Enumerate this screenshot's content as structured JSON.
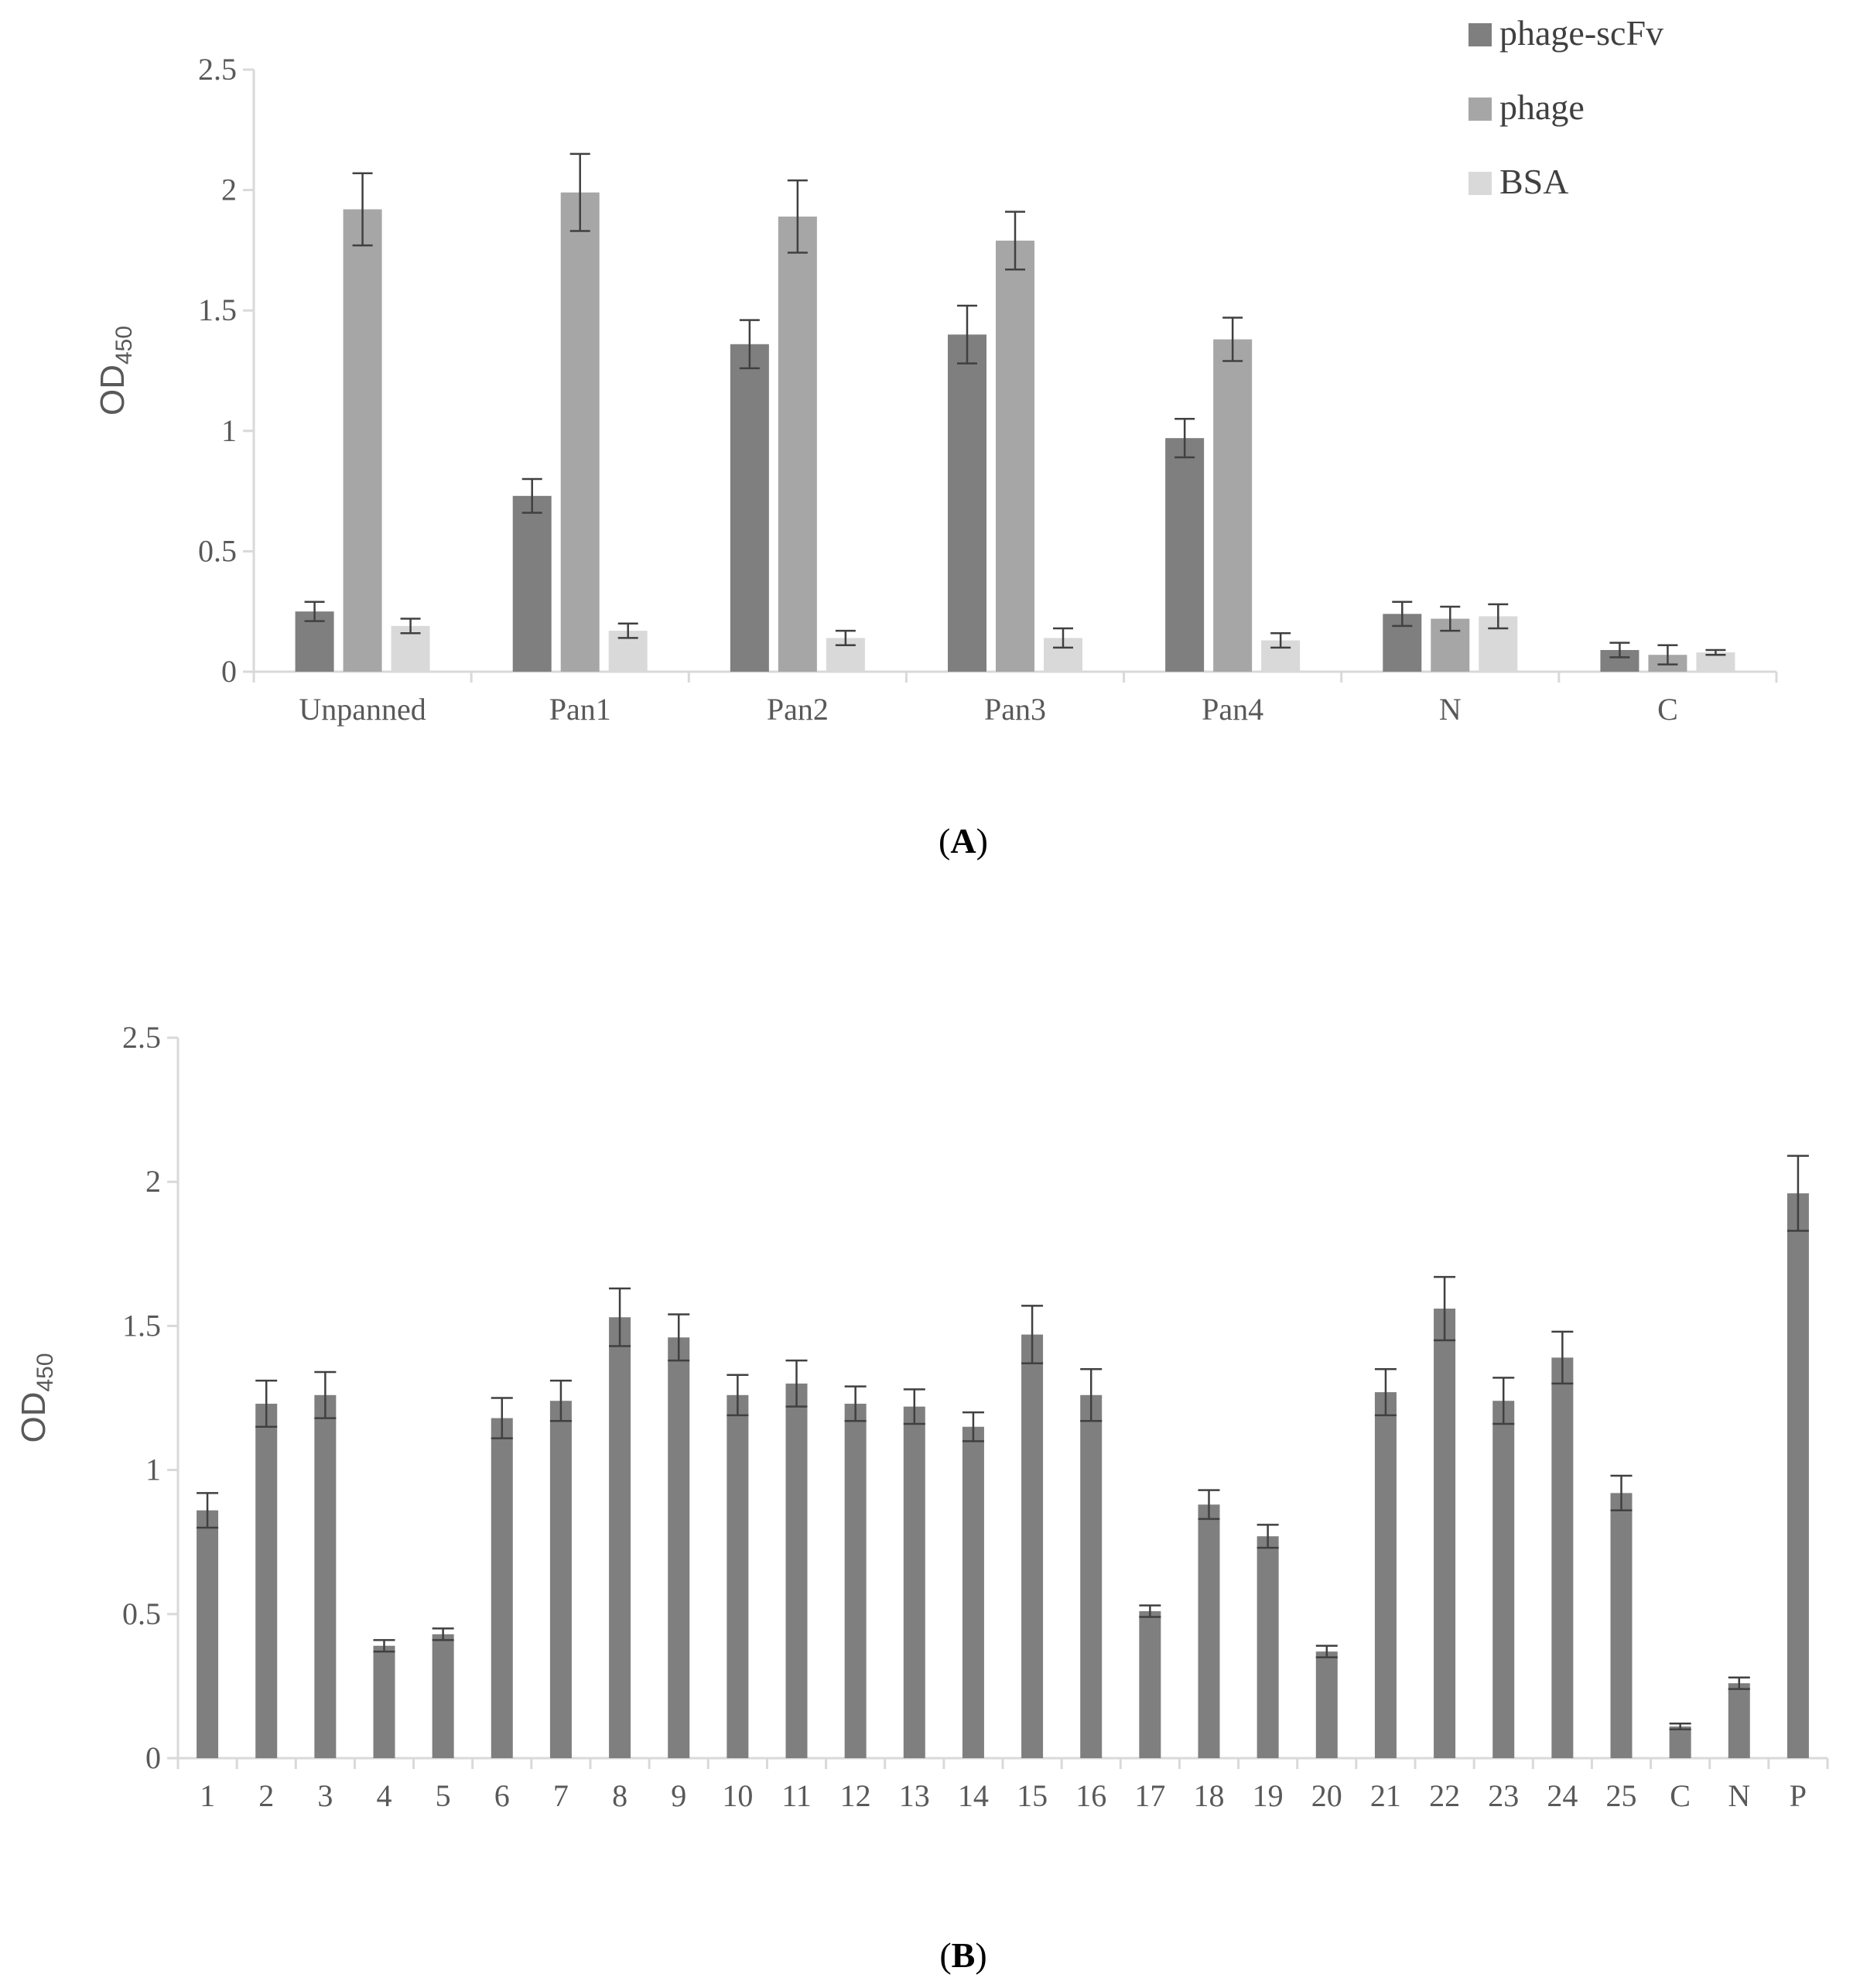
{
  "chart_data": [
    {
      "type": "bar",
      "panel_label": "A",
      "ylabel_main": "OD",
      "ylabel_sub": "450",
      "ylim": [
        0,
        2.5
      ],
      "yticks": [
        "0",
        "0.5",
        "1",
        "1.5",
        "2",
        "2.5"
      ],
      "categories": [
        "Unpanned",
        "Pan1",
        "Pan2",
        "Pan3",
        "Pan4",
        "N",
        "C"
      ],
      "legend_position": "top-right",
      "series": [
        {
          "name": "phage-scFv",
          "color": "#7f7f7f",
          "values": [
            0.25,
            0.73,
            1.36,
            1.4,
            0.97,
            0.24,
            0.09
          ],
          "errors": [
            0.04,
            0.07,
            0.1,
            0.12,
            0.08,
            0.05,
            0.03
          ]
        },
        {
          "name": "phage",
          "color": "#a6a6a6",
          "values": [
            1.92,
            1.99,
            1.89,
            1.79,
            1.38,
            0.22,
            0.07
          ],
          "errors": [
            0.15,
            0.16,
            0.15,
            0.12,
            0.09,
            0.05,
            0.04
          ]
        },
        {
          "name": "BSA",
          "color": "#d9d9d9",
          "values": [
            0.19,
            0.17,
            0.14,
            0.14,
            0.13,
            0.23,
            0.08
          ],
          "errors": [
            0.03,
            0.03,
            0.03,
            0.04,
            0.03,
            0.05,
            0.01
          ]
        }
      ]
    },
    {
      "type": "bar",
      "panel_label": "B",
      "ylabel_main": "OD",
      "ylabel_sub": "450",
      "ylim": [
        0,
        2.5
      ],
      "yticks": [
        "0",
        "0.5",
        "1",
        "1.5",
        "2",
        "2.5"
      ],
      "categories": [
        "1",
        "2",
        "3",
        "4",
        "5",
        "6",
        "7",
        "8",
        "9",
        "10",
        "11",
        "12",
        "13",
        "14",
        "15",
        "16",
        "17",
        "18",
        "19",
        "20",
        "21",
        "22",
        "23",
        "24",
        "25",
        "C",
        "N",
        "P"
      ],
      "series": [
        {
          "color": "#7f7f7f",
          "values": [
            0.86,
            1.23,
            1.26,
            0.39,
            0.43,
            1.18,
            1.24,
            1.53,
            1.46,
            1.26,
            1.3,
            1.23,
            1.22,
            1.15,
            1.47,
            1.26,
            0.51,
            0.88,
            0.77,
            0.37,
            1.27,
            1.56,
            1.24,
            1.39,
            0.92,
            0.11,
            0.26,
            1.96
          ],
          "errors": [
            0.06,
            0.08,
            0.08,
            0.02,
            0.02,
            0.07,
            0.07,
            0.1,
            0.08,
            0.07,
            0.08,
            0.06,
            0.06,
            0.05,
            0.1,
            0.09,
            0.02,
            0.05,
            0.04,
            0.02,
            0.08,
            0.11,
            0.08,
            0.09,
            0.06,
            0.01,
            0.02,
            0.13
          ]
        }
      ]
    }
  ]
}
